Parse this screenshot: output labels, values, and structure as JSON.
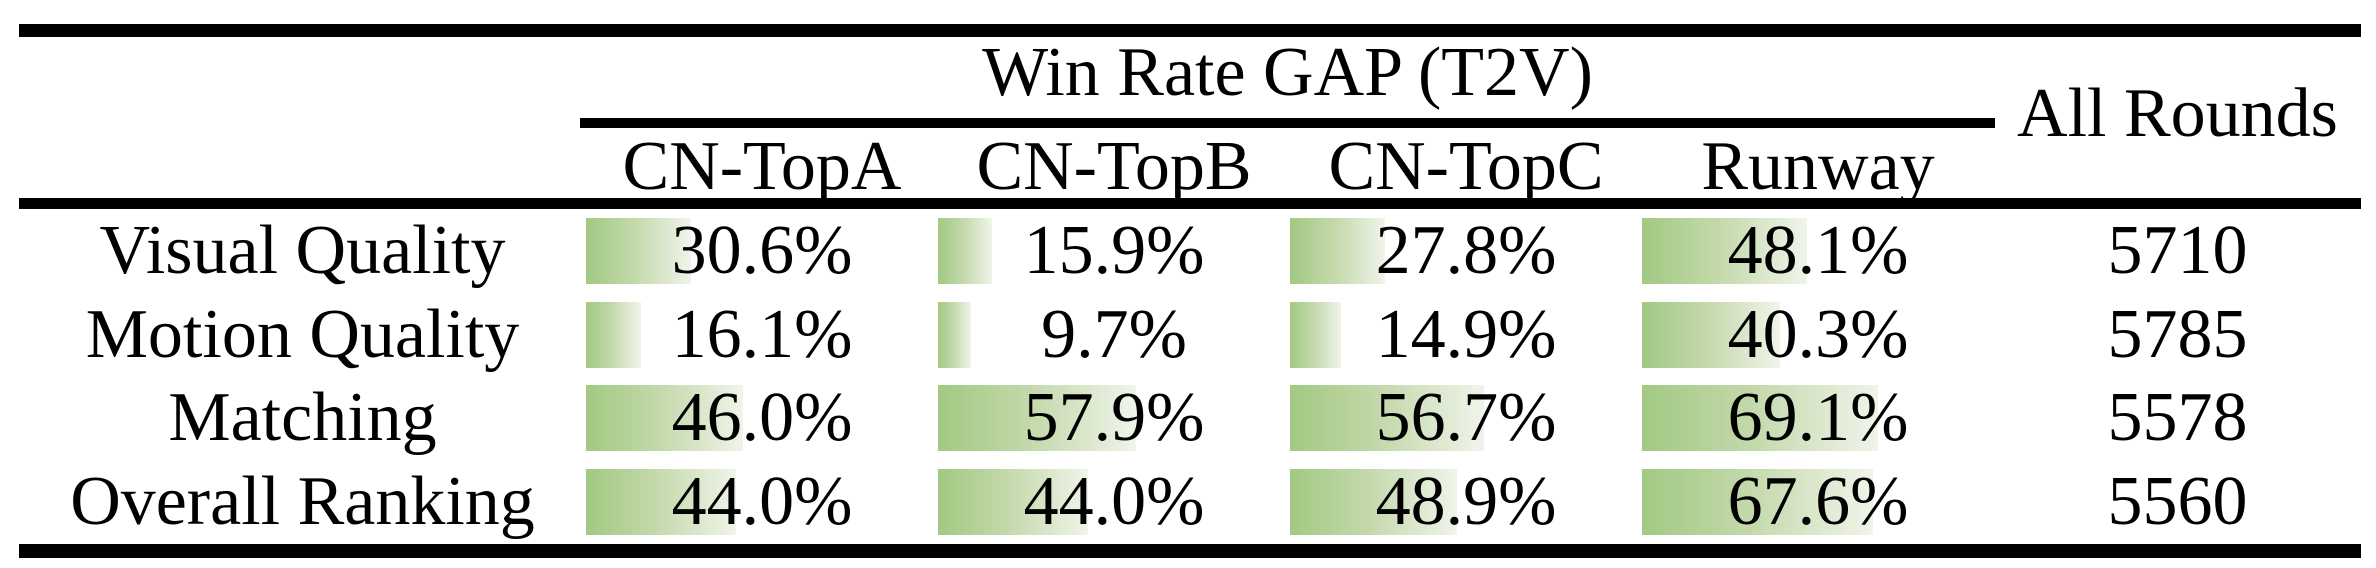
{
  "table": {
    "group_header": "Win Rate GAP (T2V)",
    "all_rounds_header": "All Rounds",
    "columns": [
      "CN-TopA",
      "CN-TopB",
      "CN-TopC",
      "Runway"
    ],
    "rows": [
      {
        "label": "Visual Quality",
        "pcts": [
          "30.6%",
          "15.9%",
          "27.8%",
          "48.1%"
        ],
        "all_rounds": "5710"
      },
      {
        "label": "Motion Quality",
        "pcts": [
          "16.1%",
          "9.7%",
          "14.9%",
          "40.3%"
        ],
        "all_rounds": "5785"
      },
      {
        "label": "Matching",
        "pcts": [
          "46.0%",
          "57.9%",
          "56.7%",
          "69.1%"
        ],
        "all_rounds": "5578"
      },
      {
        "label": "Overall Ranking",
        "pcts": [
          "44.0%",
          "44.0%",
          "48.9%",
          "67.6%"
        ],
        "all_rounds": "5560"
      }
    ],
    "bar_colors": {
      "start": "#a2c983",
      "mid": "#c2d8a9",
      "end": "#f0f4ea"
    },
    "text_color": "#000000"
  },
  "chart_data": {
    "type": "table",
    "title": "Win Rate GAP (T2V)",
    "columns": [
      "CN-TopA",
      "CN-TopB",
      "CN-TopC",
      "Runway",
      "All Rounds"
    ],
    "row_labels": [
      "Visual Quality",
      "Motion Quality",
      "Matching",
      "Overall Ranking"
    ],
    "rows": [
      {
        "label": "Visual Quality",
        "win_rate_gap_pct": [
          30.6,
          15.9,
          27.8,
          48.1
        ],
        "all_rounds": 5710
      },
      {
        "label": "Motion Quality",
        "win_rate_gap_pct": [
          16.1,
          9.7,
          14.9,
          40.3
        ],
        "all_rounds": 5785
      },
      {
        "label": "Matching",
        "win_rate_gap_pct": [
          46.0,
          57.9,
          56.7,
          69.1
        ],
        "all_rounds": 5578
      },
      {
        "label": "Overall Ranking",
        "win_rate_gap_pct": [
          44.0,
          44.0,
          48.9,
          67.6
        ],
        "all_rounds": 5560
      }
    ],
    "bar_style": "horizontal green gradient data bar behind each percentage, width proportional to value (100% = full column width)",
    "value_range_pct": [
      0,
      100
    ]
  }
}
